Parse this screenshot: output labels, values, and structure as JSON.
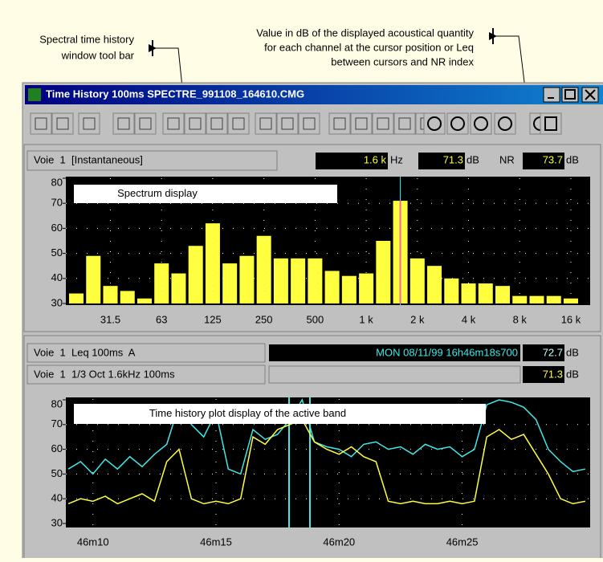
{
  "annotations": {
    "toolbar_note": [
      "Spectral time history",
      "window tool bar"
    ],
    "value_note": [
      "Value in dB of the displayed acoustical quantity",
      "for each channel at the cursor position or Leq",
      "between cursors and NR index"
    ]
  },
  "window": {
    "title": "Time History 100ms SPECTRE_991108_164610.CMG"
  },
  "spectrum_header": {
    "channel": "Voie  1  [Instantaneous]",
    "freq": "1.6 k",
    "freq_unit": "Hz",
    "level": "71.3",
    "level_unit": "dB",
    "nr_label": "NR",
    "nr": "73.7",
    "nr_unit": "dB"
  },
  "history_header": {
    "timestamp": "MON 08/11/99 16h46m18s700",
    "leq": "72.7",
    "leq_unit": "dB",
    "band_level": "71.3",
    "band_unit": "dB"
  },
  "chart_data": [
    {
      "type": "bar",
      "title": "Spectrum display",
      "categories": [
        null,
        null,
        "31.5",
        null,
        null,
        "63",
        null,
        null,
        "125",
        null,
        null,
        "250",
        null,
        null,
        "500",
        null,
        null,
        "1 k",
        null,
        null,
        "2 k",
        null,
        null,
        "4 k",
        null,
        null,
        "8 k",
        null,
        null,
        "16 k"
      ],
      "values": [
        34,
        49,
        37,
        35,
        32,
        46,
        42,
        53,
        62,
        46,
        49,
        57,
        48,
        48,
        48,
        43,
        41,
        42,
        55,
        71,
        48,
        45,
        40,
        38,
        38,
        37,
        33,
        33,
        33,
        32
      ],
      "color": "#ffff40",
      "ylim": [
        30,
        80
      ],
      "yticks": [
        30,
        40,
        50,
        60,
        70,
        80
      ],
      "grid": true
    },
    {
      "type": "line",
      "title": "Time history plot display of the active band",
      "x": [
        9.0,
        9.5,
        10.0,
        10.5,
        11.0,
        11.5,
        12.0,
        12.5,
        13.0,
        13.5,
        14.0,
        14.5,
        15.0,
        15.5,
        16.0,
        16.5,
        17.0,
        17.5,
        18.0,
        18.5,
        19.0,
        19.5,
        20.0,
        20.5,
        21.0,
        21.5,
        22.0,
        22.5,
        23.0,
        23.5,
        24.0,
        24.5,
        25.0,
        25.5,
        26.0,
        26.5,
        27.0,
        27.5,
        28.0,
        28.5,
        29.0,
        29.5,
        30.0
      ],
      "series": [
        {
          "name": "Voie  1  Leq 100ms  A",
          "color": "#40e8e8",
          "values": [
            52,
            55,
            50,
            56,
            52,
            57,
            53,
            58,
            62,
            78,
            70,
            65,
            75,
            52,
            50,
            68,
            64,
            66,
            72,
            80,
            63,
            61,
            60,
            57,
            62,
            63,
            60,
            61,
            58,
            62,
            60,
            61,
            57,
            60,
            78,
            80,
            79,
            77,
            72,
            60,
            55,
            51,
            52
          ]
        },
        {
          "name": "Voie  1  1/3 Oct 1.6kHz 100ms",
          "color": "#ffff40",
          "values": [
            38,
            40,
            39,
            41,
            38,
            40,
            42,
            39,
            55,
            60,
            40,
            38,
            39,
            38,
            40,
            65,
            62,
            68,
            70,
            72,
            63,
            60,
            58,
            61,
            57,
            55,
            39,
            38,
            39,
            38,
            38,
            39,
            38,
            39,
            65,
            68,
            64,
            66,
            58,
            50,
            40,
            38,
            39
          ]
        }
      ],
      "xlim": [
        8.9,
        30.2
      ],
      "xticks": [
        {
          "value": 10,
          "label": "46m10"
        },
        {
          "value": 15,
          "label": "46m15"
        },
        {
          "value": 20,
          "label": "46m20"
        },
        {
          "value": 25,
          "label": "46m25"
        }
      ],
      "ylim": [
        30,
        80
      ],
      "yticks": [
        30,
        40,
        50,
        60,
        70,
        80
      ],
      "grid": true
    }
  ]
}
